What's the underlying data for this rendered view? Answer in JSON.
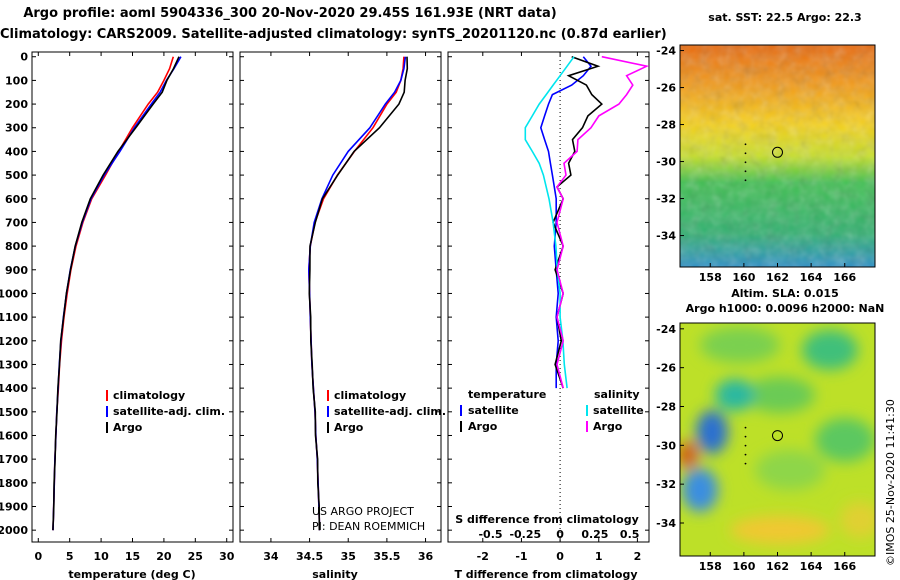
{
  "title": {
    "line1": "Argo profile: aoml 5904336_300 20-Nov-2020 29.45S 161.93E (NRT data)",
    "line2": "Climatology: CARS2009. Satellite-adjusted climatology: synTS_20201120.nc (0.87d earlier)"
  },
  "colors": {
    "climatology": "#ff0000",
    "satellite": "#0000ff",
    "argo": "#000000",
    "sal_satellite": "#00e5ee",
    "sal_argo": "#ff00ff"
  },
  "depth_ticks": [
    0,
    100,
    200,
    300,
    400,
    500,
    600,
    700,
    800,
    900,
    1000,
    1100,
    1200,
    1300,
    1400,
    1500,
    1600,
    1700,
    1800,
    1900,
    2000
  ],
  "chart_data": [
    {
      "type": "line",
      "name": "temperature",
      "xlabel": "temperature (deg C)",
      "xlim": [
        -1,
        31
      ],
      "ylim": [
        2050,
        -20
      ],
      "xticks": [
        0,
        5,
        10,
        15,
        20,
        25,
        30
      ],
      "depth": [
        0,
        50,
        100,
        150,
        200,
        300,
        400,
        500,
        600,
        700,
        800,
        900,
        1000,
        1100,
        1200,
        1300,
        1400,
        1500,
        1600,
        1700,
        1800,
        1900,
        2000
      ],
      "series": [
        {
          "name": "climatology",
          "values": [
            21.5,
            20.9,
            20.0,
            19.0,
            17.5,
            15.0,
            12.8,
            10.7,
            8.5,
            7.1,
            6.0,
            5.2,
            4.6,
            4.1,
            3.7,
            3.4,
            3.2,
            2.95,
            2.8,
            2.65,
            2.55,
            2.45,
            2.35
          ]
        },
        {
          "name": "satellite-adj. clim.",
          "values": [
            22.7,
            21.6,
            20.4,
            19.4,
            18.0,
            15.3,
            13.0,
            10.5,
            8.4,
            7.0,
            5.9,
            5.1,
            4.5,
            4.0,
            3.6,
            3.35,
            3.15,
            2.95,
            2.8,
            2.65,
            2.55,
            2.45,
            2.35
          ]
        },
        {
          "name": "Argo",
          "values": [
            22.4,
            21.5,
            20.5,
            19.7,
            18.3,
            15.5,
            12.7,
            10.3,
            8.3,
            6.9,
            5.9,
            5.1,
            4.5,
            4.0,
            3.6,
            3.35,
            3.15,
            2.95,
            2.8,
            2.65,
            2.55,
            2.45,
            2.35
          ]
        }
      ],
      "legend": [
        "climatology",
        "satellite-adj. clim.",
        "Argo"
      ]
    },
    {
      "type": "line",
      "name": "salinity",
      "xlabel": "salinity",
      "xlim": [
        33.6,
        36.2
      ],
      "ylim": [
        2050,
        -20
      ],
      "xticks": [
        34,
        34.5,
        35,
        35.5,
        36
      ],
      "depth": [
        0,
        50,
        100,
        150,
        200,
        300,
        400,
        500,
        600,
        700,
        800,
        900,
        1000,
        1100,
        1200,
        1300,
        1400,
        1500,
        1600,
        1700,
        1800,
        1900,
        2000
      ],
      "series": [
        {
          "name": "climatology",
          "values": [
            35.72,
            35.71,
            35.68,
            35.62,
            35.5,
            35.32,
            35.08,
            34.86,
            34.68,
            34.57,
            34.51,
            34.49,
            34.5,
            34.51,
            34.52,
            34.53,
            34.55,
            34.57,
            34.58,
            34.6,
            34.61,
            34.62,
            34.63
          ]
        },
        {
          "name": "satellite-adj. clim.",
          "values": [
            35.74,
            35.72,
            35.68,
            35.6,
            35.48,
            35.28,
            35.0,
            34.8,
            34.66,
            34.56,
            34.51,
            34.49,
            34.5,
            34.51,
            34.52,
            34.53,
            34.55,
            34.57,
            34.58,
            34.6,
            34.61,
            34.62,
            34.63
          ]
        },
        {
          "name": "Argo",
          "values": [
            35.76,
            35.76,
            35.74,
            35.72,
            35.66,
            35.4,
            35.08,
            34.86,
            34.67,
            34.57,
            34.51,
            34.5,
            34.5,
            34.51,
            34.52,
            34.53,
            34.55,
            34.57,
            34.58,
            34.6,
            34.61,
            34.62,
            34.63
          ]
        }
      ],
      "legend": [
        "climatology",
        "satellite-adj. clim.",
        "Argo"
      ],
      "annotation": [
        "US ARGO PROJECT",
        "PI: DEAN ROEMMICH"
      ]
    },
    {
      "type": "line",
      "name": "difference",
      "xlabel": "T difference from climatology",
      "toplabel": "S difference from climatology",
      "xlim": [
        -2.9,
        2.3
      ],
      "ylim": [
        2050,
        -20
      ],
      "xticks": [
        -2,
        -1,
        0,
        1,
        2
      ],
      "top_ticks": [
        "-0.5",
        "-0.25",
        "0",
        "0.25",
        "0.5"
      ],
      "top_tick_positions_T": [
        -1.8,
        -0.9,
        0,
        0.9,
        1.8
      ],
      "depth": [
        0,
        40,
        80,
        120,
        160,
        200,
        250,
        300,
        350,
        400,
        450,
        500,
        550,
        600,
        700,
        800,
        900,
        1000,
        1100,
        1200,
        1300,
        1400
      ],
      "series": [
        {
          "name": "T satellite",
          "values": [
            0.6,
            0.8,
            0.6,
            0.3,
            -0.2,
            -0.3,
            -0.4,
            -0.5,
            -0.4,
            -0.3,
            -0.25,
            -0.2,
            -0.15,
            -0.1,
            -0.1,
            -0.15,
            -0.1,
            -0.05,
            -0.1,
            -0.05,
            -0.1,
            -0.1
          ]
        },
        {
          "name": "T Argo",
          "values": [
            0.3,
            0.9,
            0.3,
            0.6,
            0.9,
            1.0,
            0.8,
            0.5,
            0.4,
            0.3,
            0.3,
            0.2,
            0.0,
            0.0,
            -0.1,
            0.0,
            -0.05,
            0.0,
            0.0,
            -0.05,
            -0.05,
            0.0
          ]
        },
        {
          "name": "S satellite",
          "values": [
            0.1,
            0.05,
            0.0,
            -0.05,
            -0.1,
            -0.15,
            -0.2,
            -0.25,
            -0.25,
            -0.2,
            -0.15,
            -0.12,
            -0.1,
            -0.08,
            -0.05,
            -0.03,
            -0.02,
            0.0,
            0.0,
            0.02,
            0.03,
            0.05
          ]
        },
        {
          "name": "S Argo",
          "values": [
            0.3,
            0.6,
            0.5,
            0.5,
            0.5,
            0.4,
            0.3,
            0.2,
            0.15,
            0.1,
            0.05,
            0.02,
            0.0,
            0.0,
            0.0,
            0.0,
            0.0,
            0.0,
            0.0,
            0.0,
            0.0,
            0.0
          ]
        }
      ],
      "legend_headers": [
        "temperature",
        "salinity"
      ],
      "legend_t": [
        "satellite",
        "Argo"
      ],
      "legend_s": [
        "satellite",
        "Argo"
      ]
    },
    {
      "type": "heatmap",
      "name": "sst_map",
      "title": "sat. SST: 22.5 Argo: 22.3",
      "xlim": [
        156.2,
        167.8
      ],
      "ylim": [
        -35.7,
        -23.7
      ],
      "xticks": [
        158,
        160,
        162,
        164,
        166
      ],
      "yticks": [
        -24,
        -26,
        -28,
        -30,
        -32,
        -34
      ],
      "marker": [
        162,
        -29.5
      ]
    },
    {
      "type": "heatmap",
      "name": "sla_map",
      "title1": "Altim. SLA: 0.015",
      "title2": "Argo h1000: 0.0096 h2000: NaN",
      "xlim": [
        156.2,
        167.8
      ],
      "ylim": [
        -35.7,
        -23.7
      ],
      "xticks": [
        158,
        160,
        162,
        164,
        166
      ],
      "yticks": [
        -24,
        -26,
        -28,
        -30,
        -32,
        -34
      ],
      "marker": [
        162,
        -29.5
      ]
    }
  ],
  "footer": "©IMOS 25-Nov-2020 11:41:30"
}
